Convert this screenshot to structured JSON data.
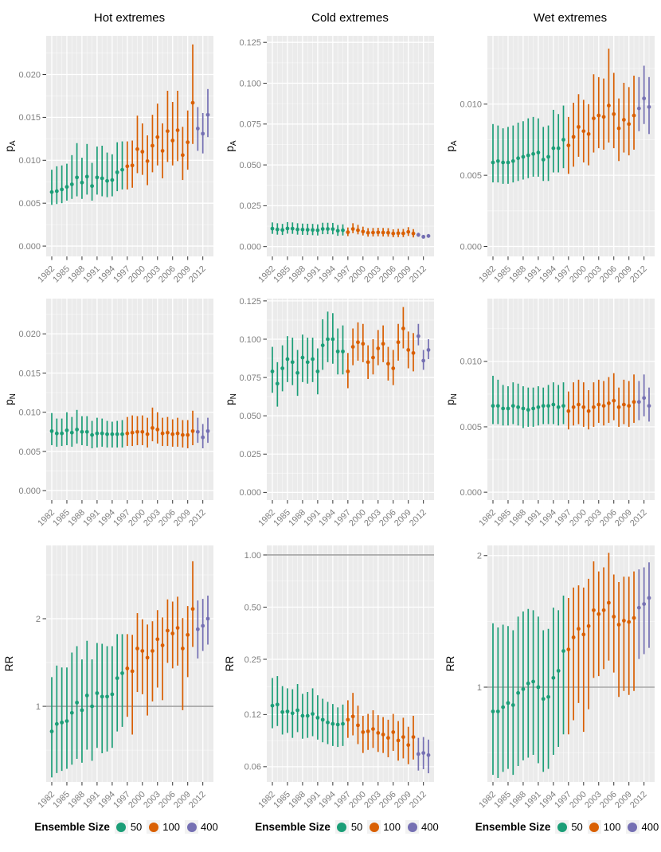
{
  "palette": {
    "ensemble_50": "#1B9E77",
    "ensemble_100": "#D95F02",
    "ensemble_400": "#7570B3",
    "panel_bg": "#EBEBEB",
    "grid_major": "#FFFFFF",
    "grid_minor": "#F7F7F7",
    "tick_text": "#7F7F7F",
    "tick_mark": "#333333",
    "ref_line": "#7F7F7F"
  },
  "columns": [
    {
      "title": "Hot extremes"
    },
    {
      "title": "Cold extremes"
    },
    {
      "title": "Wet extremes"
    }
  ],
  "legend": {
    "title": "Ensemble Size",
    "items": [
      {
        "label": "50",
        "color": "#1B9E77"
      },
      {
        "label": "100",
        "color": "#D95F02"
      },
      {
        "label": "400",
        "color": "#7570B3"
      }
    ]
  },
  "x_axis": {
    "start_year": 1982,
    "end_year": 2013,
    "tick_years": [
      1982,
      1985,
      1988,
      1991,
      1994,
      1997,
      2000,
      2003,
      2006,
      2009,
      2012
    ],
    "tick_labels": [
      "1982",
      "1985",
      "1988",
      "1991",
      "1994",
      "1997",
      "2000",
      "2003",
      "2006",
      "2009",
      "2012"
    ]
  },
  "series_grouping": [
    {
      "ensemble_size": "50",
      "from_year": 1982,
      "to_year": 1996
    },
    {
      "ensemble_size": "100",
      "from_year": 1997,
      "to_year": 2010
    },
    {
      "ensemble_size": "400",
      "from_year": 2011,
      "to_year": 2013
    }
  ],
  "chart_data": [
    {
      "type": "pointrange",
      "facet_col": "Hot extremes",
      "facet_row": "pA",
      "ylabel": "p_A",
      "scale": "linear",
      "ylim": [
        -0.0012,
        0.0245
      ],
      "yticks": [
        0,
        0.005,
        0.01,
        0.015,
        0.02
      ],
      "ytick_labels": [
        "0.000",
        "0.005",
        "0.010",
        "0.015",
        "0.020"
      ],
      "values": [
        0.0063,
        0.0064,
        0.0066,
        0.0069,
        0.0072,
        0.008,
        0.0074,
        0.0081,
        0.007,
        0.008,
        0.0079,
        0.0076,
        0.0077,
        0.0086,
        0.0089,
        0.0093,
        0.0094,
        0.0113,
        0.011,
        0.0099,
        0.0117,
        0.0127,
        0.0111,
        0.0134,
        0.0123,
        0.0135,
        0.0106,
        0.0121,
        0.0167,
        0.0137,
        0.0131,
        0.0153
      ],
      "lo": [
        0.0048,
        0.0049,
        0.005,
        0.0053,
        0.0055,
        0.0058,
        0.0055,
        0.006,
        0.0053,
        0.006,
        0.0058,
        0.0057,
        0.0058,
        0.0064,
        0.0066,
        0.0066,
        0.0068,
        0.0085,
        0.0083,
        0.0071,
        0.0086,
        0.0094,
        0.0079,
        0.0098,
        0.0094,
        0.0099,
        0.0077,
        0.0089,
        0.0119,
        0.0111,
        0.0108,
        0.0127
      ],
      "hi": [
        0.0089,
        0.0093,
        0.0094,
        0.0096,
        0.0106,
        0.012,
        0.0103,
        0.0119,
        0.0097,
        0.0116,
        0.0117,
        0.0109,
        0.0107,
        0.0121,
        0.0122,
        0.0122,
        0.0123,
        0.0152,
        0.0143,
        0.0129,
        0.0153,
        0.0166,
        0.0143,
        0.0181,
        0.0168,
        0.0181,
        0.0139,
        0.0158,
        0.0235,
        0.0162,
        0.0155,
        0.0183
      ]
    },
    {
      "type": "pointrange",
      "facet_col": "Cold extremes",
      "facet_row": "pA",
      "ylabel": "p_A",
      "scale": "linear",
      "ylim": [
        -0.006,
        0.129
      ],
      "yticks": [
        0,
        0.025,
        0.05,
        0.075,
        0.1,
        0.125
      ],
      "ytick_labels": [
        "0.000",
        "0.025",
        "0.050",
        "0.075",
        "0.100",
        "0.125"
      ],
      "values": [
        0.011,
        0.0105,
        0.0102,
        0.0111,
        0.011,
        0.0105,
        0.0104,
        0.0103,
        0.0102,
        0.01,
        0.0108,
        0.0108,
        0.0107,
        0.0097,
        0.01,
        0.0088,
        0.0108,
        0.01,
        0.0092,
        0.0085,
        0.0086,
        0.0087,
        0.0086,
        0.0085,
        0.008,
        0.0082,
        0.0081,
        0.009,
        0.008,
        0.0072,
        0.006,
        0.0065
      ],
      "lo": [
        0.0078,
        0.0073,
        0.0071,
        0.0079,
        0.0078,
        0.0073,
        0.0072,
        0.0071,
        0.007,
        0.0068,
        0.0076,
        0.0076,
        0.0075,
        0.0066,
        0.0068,
        0.0064,
        0.0082,
        0.0075,
        0.0068,
        0.0061,
        0.0062,
        0.0063,
        0.0062,
        0.0061,
        0.0057,
        0.0058,
        0.0058,
        0.0065,
        0.0056,
        0.006,
        0.0049,
        0.0054
      ],
      "hi": [
        0.0148,
        0.0143,
        0.0139,
        0.015,
        0.0148,
        0.0143,
        0.0141,
        0.014,
        0.0139,
        0.0136,
        0.0146,
        0.0146,
        0.0145,
        0.0132,
        0.0136,
        0.0117,
        0.0143,
        0.0133,
        0.0122,
        0.0113,
        0.0114,
        0.0115,
        0.0114,
        0.0113,
        0.0106,
        0.0109,
        0.0108,
        0.0119,
        0.0107,
        0.0085,
        0.0072,
        0.0077
      ]
    },
    {
      "type": "pointrange",
      "facet_col": "Wet extremes",
      "facet_row": "pA",
      "ylabel": "p_A",
      "scale": "linear",
      "ylim": [
        -0.0007,
        0.0148
      ],
      "yticks": [
        0,
        0.005,
        0.01
      ],
      "ytick_labels": [
        "0.000",
        "0.005",
        "0.010"
      ],
      "values": [
        0.0059,
        0.006,
        0.0059,
        0.0059,
        0.006,
        0.0062,
        0.0063,
        0.0064,
        0.0065,
        0.0066,
        0.0061,
        0.0063,
        0.0069,
        0.0069,
        0.0075,
        0.0071,
        0.0077,
        0.0084,
        0.0081,
        0.0079,
        0.009,
        0.0092,
        0.0091,
        0.0099,
        0.0093,
        0.0083,
        0.0089,
        0.0086,
        0.0092,
        0.0097,
        0.0104,
        0.0098
      ],
      "lo": [
        0.0045,
        0.0045,
        0.0044,
        0.0044,
        0.0045,
        0.0046,
        0.0047,
        0.0048,
        0.0049,
        0.0049,
        0.0046,
        0.0046,
        0.0052,
        0.0052,
        0.0055,
        0.0051,
        0.0056,
        0.0063,
        0.0059,
        0.0057,
        0.0066,
        0.0069,
        0.0068,
        0.0073,
        0.0069,
        0.006,
        0.0066,
        0.0064,
        0.0068,
        0.0081,
        0.0086,
        0.0079
      ],
      "hi": [
        0.0086,
        0.0085,
        0.0083,
        0.0084,
        0.0085,
        0.0087,
        0.0088,
        0.009,
        0.0091,
        0.009,
        0.0084,
        0.0085,
        0.0096,
        0.0093,
        0.0099,
        0.0091,
        0.0101,
        0.0107,
        0.0103,
        0.01,
        0.0121,
        0.0119,
        0.0118,
        0.0139,
        0.0122,
        0.0104,
        0.0115,
        0.0112,
        0.012,
        0.0119,
        0.0127,
        0.0119
      ]
    },
    {
      "type": "pointrange",
      "facet_col": "Hot extremes",
      "facet_row": "pN",
      "ylabel": "p_N",
      "scale": "linear",
      "ylim": [
        -0.0012,
        0.0245
      ],
      "yticks": [
        0,
        0.005,
        0.01,
        0.015,
        0.02
      ],
      "ytick_labels": [
        "0.000",
        "0.005",
        "0.010",
        "0.015",
        "0.020"
      ],
      "values": [
        0.0076,
        0.0073,
        0.0073,
        0.0077,
        0.0074,
        0.0078,
        0.0075,
        0.0075,
        0.0071,
        0.0073,
        0.0073,
        0.0072,
        0.0072,
        0.0072,
        0.0072,
        0.0073,
        0.0074,
        0.0075,
        0.0075,
        0.0072,
        0.008,
        0.0078,
        0.0073,
        0.0074,
        0.0072,
        0.0073,
        0.0071,
        0.0071,
        0.0076,
        0.0075,
        0.0068,
        0.0076
      ],
      "lo": [
        0.0058,
        0.0056,
        0.0057,
        0.0058,
        0.0056,
        0.006,
        0.0058,
        0.0057,
        0.0054,
        0.0055,
        0.0056,
        0.0055,
        0.0055,
        0.0055,
        0.0055,
        0.0057,
        0.0057,
        0.0058,
        0.0058,
        0.0055,
        0.0063,
        0.006,
        0.0057,
        0.0057,
        0.0056,
        0.0056,
        0.0055,
        0.0054,
        0.0058,
        0.0061,
        0.0054,
        0.0061
      ],
      "hi": [
        0.0099,
        0.0092,
        0.0092,
        0.01,
        0.0094,
        0.0103,
        0.0095,
        0.0095,
        0.0089,
        0.0093,
        0.0092,
        0.0089,
        0.0088,
        0.0089,
        0.009,
        0.0094,
        0.0096,
        0.0095,
        0.0096,
        0.0093,
        0.0106,
        0.01,
        0.0093,
        0.0094,
        0.0091,
        0.0093,
        0.009,
        0.009,
        0.0102,
        0.0093,
        0.0085,
        0.0093
      ]
    },
    {
      "type": "pointrange",
      "facet_col": "Cold extremes",
      "facet_row": "pN",
      "ylabel": "p_N",
      "scale": "linear",
      "ylim": [
        -0.005,
        0.1265
      ],
      "yticks": [
        0,
        0.025,
        0.05,
        0.075,
        0.1,
        0.125
      ],
      "ytick_labels": [
        "0.000",
        "0.025",
        "0.050",
        "0.075",
        "0.100",
        "0.125"
      ],
      "values": [
        0.079,
        0.071,
        0.081,
        0.087,
        0.085,
        0.078,
        0.088,
        0.085,
        0.087,
        0.079,
        0.096,
        0.1,
        0.1,
        0.092,
        0.092,
        0.079,
        0.095,
        0.098,
        0.097,
        0.085,
        0.088,
        0.094,
        0.097,
        0.084,
        0.081,
        0.098,
        0.107,
        0.093,
        0.091,
        0.102,
        0.086,
        0.093
      ],
      "lo": [
        0.065,
        0.056,
        0.066,
        0.072,
        0.07,
        0.063,
        0.072,
        0.071,
        0.072,
        0.064,
        0.08,
        0.085,
        0.084,
        0.077,
        0.077,
        0.068,
        0.083,
        0.086,
        0.085,
        0.074,
        0.077,
        0.083,
        0.085,
        0.073,
        0.07,
        0.086,
        0.094,
        0.081,
        0.079,
        0.096,
        0.08,
        0.087
      ],
      "hi": [
        0.095,
        0.085,
        0.096,
        0.102,
        0.101,
        0.093,
        0.103,
        0.101,
        0.101,
        0.094,
        0.113,
        0.118,
        0.117,
        0.107,
        0.109,
        0.091,
        0.107,
        0.111,
        0.11,
        0.096,
        0.1,
        0.106,
        0.109,
        0.095,
        0.093,
        0.11,
        0.121,
        0.105,
        0.104,
        0.11,
        0.093,
        0.1
      ]
    },
    {
      "type": "pointrange",
      "facet_col": "Wet extremes",
      "facet_row": "pN",
      "ylabel": "p_N",
      "scale": "linear",
      "ylim": [
        -0.0006,
        0.0148
      ],
      "yticks": [
        0,
        0.005,
        0.01
      ],
      "ytick_labels": [
        "0.000",
        "0.005",
        "0.010"
      ],
      "values": [
        0.0066,
        0.0066,
        0.0064,
        0.0064,
        0.0066,
        0.0065,
        0.0064,
        0.0063,
        0.0064,
        0.0065,
        0.0066,
        0.0066,
        0.0067,
        0.0065,
        0.0066,
        0.0062,
        0.0065,
        0.0067,
        0.0065,
        0.0062,
        0.0065,
        0.0067,
        0.0066,
        0.0068,
        0.007,
        0.0065,
        0.0067,
        0.0066,
        0.0069,
        0.0069,
        0.0072,
        0.0066
      ],
      "lo": [
        0.0052,
        0.0052,
        0.0051,
        0.0051,
        0.0052,
        0.0051,
        0.0049,
        0.005,
        0.005,
        0.0051,
        0.0052,
        0.0052,
        0.0052,
        0.0051,
        0.0052,
        0.0048,
        0.0051,
        0.0052,
        0.005,
        0.0048,
        0.005,
        0.0053,
        0.0051,
        0.0053,
        0.0055,
        0.005,
        0.0052,
        0.005,
        0.0053,
        0.0055,
        0.0058,
        0.0054
      ],
      "hi": [
        0.0089,
        0.0086,
        0.0082,
        0.0081,
        0.0084,
        0.0083,
        0.0081,
        0.008,
        0.008,
        0.0081,
        0.008,
        0.0082,
        0.0084,
        0.0082,
        0.0084,
        0.0077,
        0.0084,
        0.0086,
        0.0084,
        0.0078,
        0.0084,
        0.0086,
        0.0085,
        0.0088,
        0.0091,
        0.008,
        0.0086,
        0.0085,
        0.009,
        0.0085,
        0.009,
        0.008
      ]
    },
    {
      "type": "pointrange",
      "facet_col": "Hot extremes",
      "facet_row": "RR",
      "ylabel": "RR",
      "scale": "log",
      "ylim": [
        0.55,
        3.57
      ],
      "yticks": [
        1,
        2
      ],
      "ytick_labels": [
        "1",
        "2"
      ],
      "ref_line": 1,
      "values": [
        0.82,
        0.87,
        0.88,
        0.89,
        0.95,
        1.03,
        0.97,
        1.09,
        1.0,
        1.11,
        1.08,
        1.08,
        1.1,
        1.25,
        1.3,
        1.35,
        1.32,
        1.58,
        1.55,
        1.47,
        1.55,
        1.7,
        1.62,
        1.82,
        1.78,
        1.86,
        1.58,
        1.76,
        2.16,
        1.84,
        1.89,
        2.0
      ],
      "lo": [
        0.57,
        0.59,
        0.6,
        0.61,
        0.63,
        0.66,
        0.64,
        0.71,
        0.65,
        0.72,
        0.69,
        0.7,
        0.72,
        0.82,
        0.85,
        0.92,
        0.8,
        1.12,
        1.1,
        0.93,
        1.04,
        1.16,
        1.05,
        1.41,
        1.35,
        1.38,
        0.97,
        1.26,
        1.6,
        1.46,
        1.55,
        1.63
      ],
      "hi": [
        1.26,
        1.38,
        1.36,
        1.36,
        1.53,
        1.61,
        1.45,
        1.68,
        1.45,
        1.65,
        1.64,
        1.61,
        1.61,
        1.77,
        1.77,
        1.77,
        1.76,
        2.09,
        1.99,
        1.91,
        1.96,
        2.14,
        2.02,
        2.33,
        2.29,
        2.38,
        2.01,
        2.21,
        3.15,
        2.31,
        2.34,
        2.4
      ]
    },
    {
      "type": "pointrange",
      "facet_col": "Cold extremes",
      "facet_row": "RR",
      "ylabel": "RR",
      "scale": "log",
      "ylim": [
        0.049,
        1.135
      ],
      "yticks": [
        0.06,
        0.12,
        0.25,
        0.5,
        1.0
      ],
      "ytick_labels": [
        "0.06",
        "0.12",
        "0.25",
        "0.50",
        "1.00"
      ],
      "ref_line": 1,
      "values": [
        0.135,
        0.137,
        0.124,
        0.125,
        0.122,
        0.127,
        0.118,
        0.118,
        0.121,
        0.115,
        0.112,
        0.108,
        0.106,
        0.105,
        0.106,
        0.112,
        0.117,
        0.104,
        0.095,
        0.096,
        0.099,
        0.094,
        0.092,
        0.088,
        0.095,
        0.085,
        0.089,
        0.08,
        0.089,
        0.071,
        0.072,
        0.07
      ],
      "lo": [
        0.1,
        0.103,
        0.092,
        0.094,
        0.088,
        0.095,
        0.087,
        0.088,
        0.09,
        0.086,
        0.083,
        0.081,
        0.079,
        0.078,
        0.079,
        0.088,
        0.091,
        0.081,
        0.072,
        0.075,
        0.077,
        0.073,
        0.072,
        0.068,
        0.074,
        0.065,
        0.067,
        0.062,
        0.066,
        0.057,
        0.058,
        0.055
      ],
      "hi": [
        0.195,
        0.2,
        0.175,
        0.17,
        0.168,
        0.18,
        0.158,
        0.162,
        0.17,
        0.155,
        0.148,
        0.142,
        0.138,
        0.132,
        0.137,
        0.145,
        0.16,
        0.135,
        0.118,
        0.121,
        0.127,
        0.119,
        0.116,
        0.112,
        0.121,
        0.11,
        0.115,
        0.102,
        0.118,
        0.088,
        0.089,
        0.086
      ]
    },
    {
      "type": "pointrange",
      "facet_col": "Wet extremes",
      "facet_row": "RR",
      "ylabel": "RR",
      "scale": "log",
      "ylim": [
        0.607,
        2.11
      ],
      "yticks": [
        1,
        2
      ],
      "ytick_labels": [
        "1",
        "2"
      ],
      "ref_line": 1,
      "values": [
        0.88,
        0.88,
        0.9,
        0.92,
        0.91,
        0.97,
        0.99,
        1.02,
        1.03,
        1.0,
        0.94,
        0.95,
        1.05,
        1.09,
        1.21,
        1.22,
        1.3,
        1.36,
        1.32,
        1.38,
        1.5,
        1.47,
        1.5,
        1.56,
        1.45,
        1.39,
        1.42,
        1.41,
        1.44,
        1.52,
        1.55,
        1.6
      ],
      "lo": [
        0.63,
        0.62,
        0.64,
        0.65,
        0.63,
        0.66,
        0.68,
        0.69,
        0.7,
        0.67,
        0.64,
        0.65,
        0.7,
        0.73,
        0.78,
        0.78,
        0.84,
        0.92,
        0.79,
        0.89,
        1.05,
        1.06,
        1.1,
        1.15,
        1.08,
        0.95,
        0.98,
        0.96,
        0.98,
        1.16,
        1.19,
        1.23
      ],
      "hi": [
        1.4,
        1.37,
        1.39,
        1.38,
        1.35,
        1.45,
        1.49,
        1.51,
        1.5,
        1.45,
        1.35,
        1.36,
        1.52,
        1.5,
        1.62,
        1.6,
        1.69,
        1.71,
        1.69,
        1.77,
        1.94,
        1.84,
        1.88,
        2.03,
        1.81,
        1.74,
        1.79,
        1.79,
        1.84,
        1.86,
        1.88,
        1.93
      ]
    }
  ]
}
